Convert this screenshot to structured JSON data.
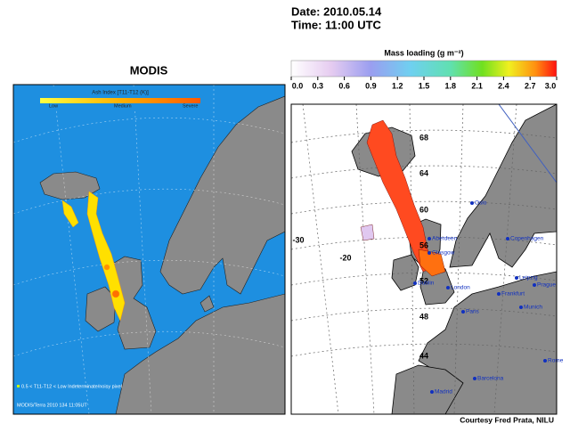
{
  "header": {
    "date": "Date: 2010.05.14",
    "time": "Time: 11:00 UTC"
  },
  "left_panel": {
    "title": "MODIS",
    "legend_title": "Ash Index [T11-T12 (K)]",
    "legend_levels": [
      "Low",
      "Medium",
      "Severe"
    ],
    "footnote_key": "0.5 < T11-T12 < Low  Indeterminate/noisy pixel",
    "footnote": "MODIS/Terra 2010 134 11:05UT"
  },
  "right_panel": {
    "colorbar_title": "Mass loading (g m⁻²)",
    "colorbar_range": [
      0,
      3
    ],
    "colorbar_ticks": [
      {
        "value": 0,
        "label": "0.0"
      },
      {
        "value": 0.3,
        "label": "0.3"
      },
      {
        "value": 0.6,
        "label": "0.6"
      },
      {
        "value": 0.9,
        "label": "0.9"
      },
      {
        "value": 1.2,
        "label": "1.2"
      },
      {
        "value": 1.5,
        "label": "1.5"
      },
      {
        "value": 1.8,
        "label": "1.8"
      },
      {
        "value": 2.1,
        "label": "2.1"
      },
      {
        "value": 2.4,
        "label": "2.4"
      },
      {
        "value": 2.7,
        "label": "2.7"
      },
      {
        "value": 3,
        "label": "3.0"
      }
    ],
    "latitudes": [
      "68",
      "64",
      "60",
      "56",
      "52",
      "48",
      "44"
    ],
    "longitudes": [
      "-30",
      "-20"
    ],
    "cities": [
      "Aberdeen",
      "Glasgow",
      "Dublin",
      "London",
      "Paris",
      "Frankfurt",
      "Leipzig",
      "Prague",
      "Munich",
      "Copenhagen",
      "Oslo",
      "Barcelona",
      "Madrid",
      "Rome"
    ]
  },
  "credit": "Courtesy Fred Prata, NILU"
}
